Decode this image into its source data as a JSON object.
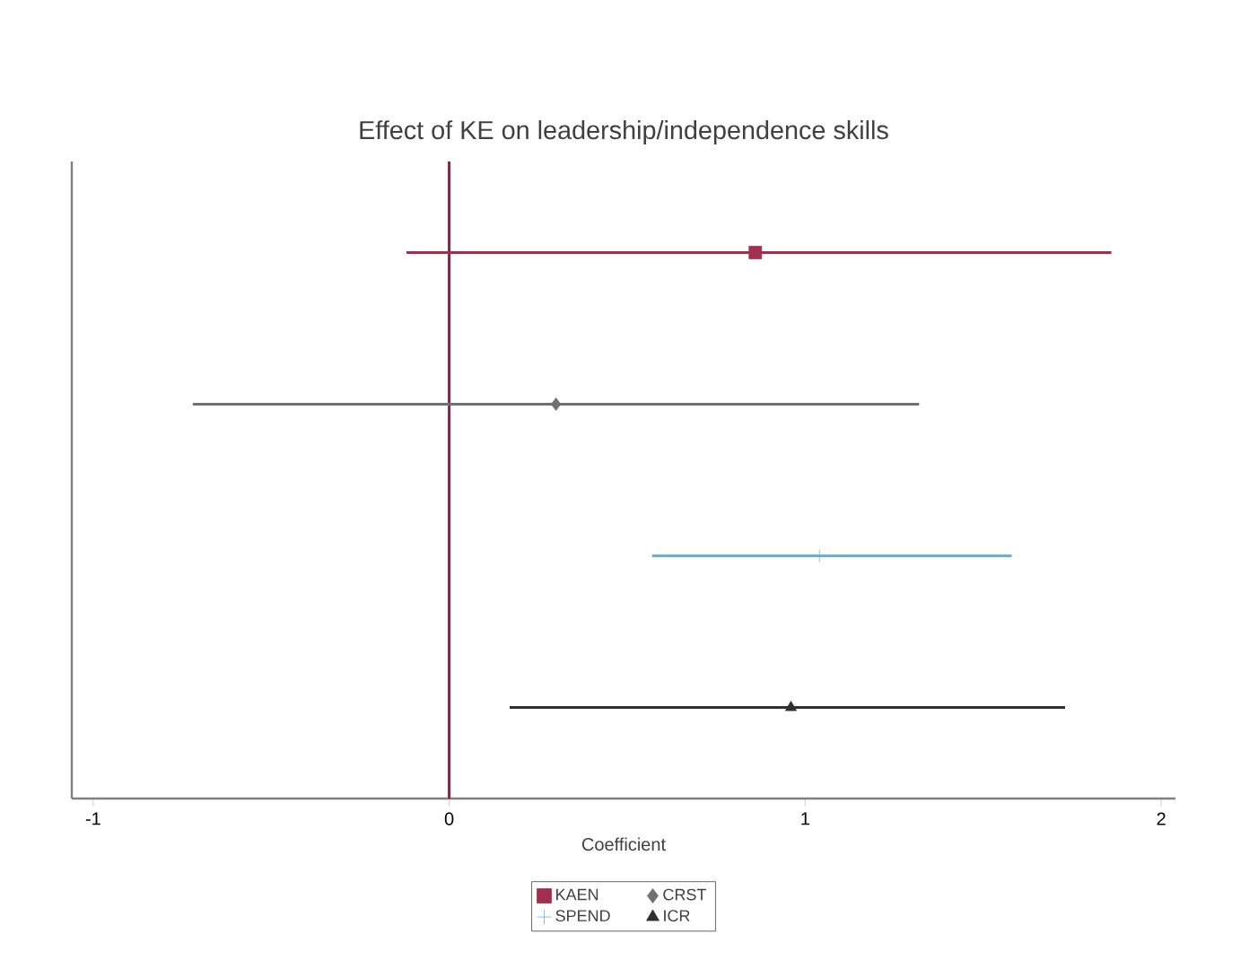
{
  "chart_data": {
    "type": "scatter",
    "orientation": "horizontal",
    "title": "Effect of KE on leadership/independence skills",
    "xlabel": "Coefficient",
    "categories": [
      null,
      null,
      null,
      null
    ],
    "series": [
      {
        "name": "KAEN",
        "color": "#a03050",
        "marker": "square",
        "values": [
          0.86,
          null,
          null,
          null
        ],
        "errors": [
          [
            -0.12,
            1.86
          ],
          null,
          null,
          null
        ]
      },
      {
        "name": "CRST",
        "color": "#707070",
        "marker": "diamond",
        "values": [
          null,
          0.3,
          null,
          null
        ],
        "errors": [
          null,
          [
            -0.72,
            1.32
          ],
          null,
          null
        ]
      },
      {
        "name": "SPEND",
        "color": "#6aaed0",
        "marker": "cross",
        "values": [
          null,
          null,
          1.04,
          null
        ],
        "errors": [
          null,
          null,
          [
            0.57,
            1.58
          ],
          null
        ]
      },
      {
        "name": "ICR",
        "color": "#303030",
        "marker": "triangle",
        "values": [
          null,
          null,
          null,
          0.96
        ],
        "errors": [
          null,
          null,
          null,
          [
            0.17,
            1.73
          ]
        ]
      }
    ],
    "xlim": [
      -1.06,
      2.04
    ],
    "xticks": [
      -1,
      0,
      1,
      2
    ],
    "ref_lines": [
      {
        "axis": "x",
        "value": 0,
        "color": "#8b2040"
      }
    ],
    "grid": false,
    "legend": "bottom",
    "tick_labels": "x"
  }
}
